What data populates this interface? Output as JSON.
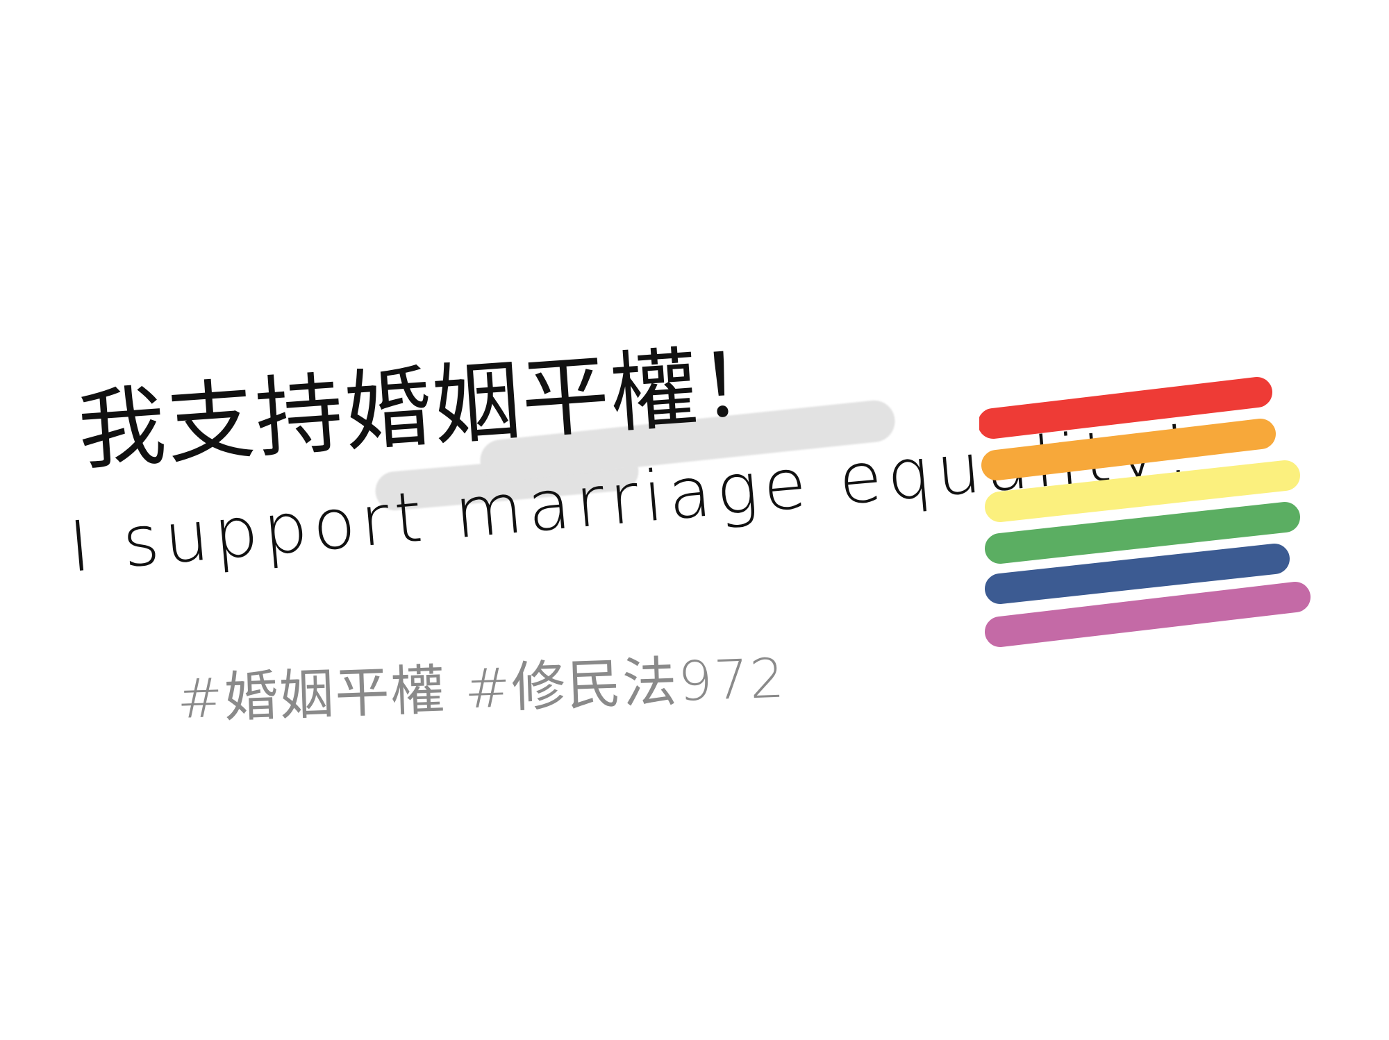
{
  "text": {
    "headline_zh": "我支持婚姻平權！",
    "headline_en": "I support marriage equality!",
    "hashtags": "#婚姻平權 #修民法972"
  },
  "flag": {
    "name": "rainbow-flag",
    "stripes": [
      {
        "name": "red",
        "color": "#ee3b36"
      },
      {
        "name": "orange",
        "color": "#f7a83a"
      },
      {
        "name": "yellow",
        "color": "#fbf07e"
      },
      {
        "name": "green",
        "color": "#5bae62"
      },
      {
        "name": "blue",
        "color": "#3c5b92"
      },
      {
        "name": "purple",
        "color": "#c46aa6"
      }
    ]
  },
  "colors": {
    "ink": "#111111",
    "hashtag_ink": "#8a8a8a",
    "highlight": "#e2e2e2",
    "background": "#ffffff"
  }
}
